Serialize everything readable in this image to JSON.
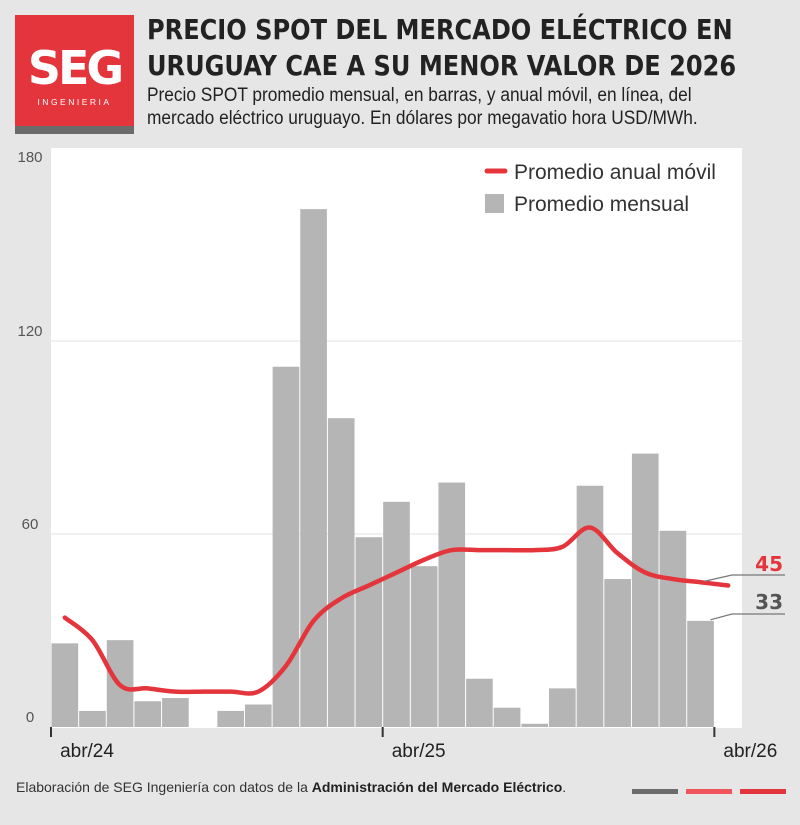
{
  "logo": {
    "main": "SEG",
    "sub": "INGENIERIA"
  },
  "header": {
    "title_line1": "PRECIO SPOT DEL MERCADO ELÉCTRICO EN",
    "title_line2": "URUGUAY CAE A SU MENOR VALOR DE 2026",
    "subtitle_line1": "Precio SPOT promedio mensual, en barras, y anual móvil, en línea, del",
    "subtitle_line2": "mercado eléctrico uruguayo. En dólares por megavatio hora USD/MWh."
  },
  "footer": {
    "prefix": "Elaboración de SEG Ingeniería con datos de la ",
    "source": "Administración del Mercado Eléctrico",
    "suffix": "."
  },
  "colors": {
    "background": "#e6e6e6",
    "bar": "#b5b5b5",
    "line": "#e4343c",
    "brand_red": "#e4343c",
    "brand_gray": "#6b6b6b"
  },
  "chart_data": {
    "type": "bar",
    "categories": [
      "abr/24",
      "may/24",
      "jun/24",
      "jul/24",
      "ago/24",
      "sep/24",
      "oct/24",
      "nov/24",
      "dic/24",
      "ene/25",
      "feb/25",
      "mar/25",
      "abr/25",
      "may/25",
      "jun/25",
      "jul/25",
      "ago/25",
      "sep/25",
      "oct/25",
      "nov/25",
      "dic/25",
      "ene/26",
      "feb/26",
      "mar/26",
      "abr/26"
    ],
    "x_tick_labels": [
      "abr/24",
      "abr/25",
      "abr/26"
    ],
    "x_tick_indices": [
      0,
      12,
      24
    ],
    "series": [
      {
        "name": "Promedio mensual",
        "kind": "bar",
        "values": [
          26,
          5,
          27,
          8,
          9,
          0,
          5,
          7,
          112,
          161,
          96,
          59,
          70,
          50,
          76,
          15,
          6,
          1,
          12,
          75,
          46,
          85,
          61,
          33,
          null
        ]
      },
      {
        "name": "Promedio anual móvil",
        "kind": "line",
        "values": [
          34,
          27,
          13,
          12,
          11,
          11,
          11,
          11,
          19,
          33,
          40,
          44,
          48,
          52,
          55,
          55,
          55,
          55,
          56,
          62,
          54,
          48,
          46,
          45,
          44
        ]
      }
    ],
    "ylim": [
      0,
      180
    ],
    "y_ticks": [
      0,
      60,
      120,
      180
    ],
    "grid": true,
    "legend_position": "top-right",
    "annotations": [
      {
        "label": "45",
        "series": "Promedio anual móvil",
        "color": "#e4343c"
      },
      {
        "label": "33",
        "series": "Promedio mensual",
        "color": "#555555"
      }
    ]
  }
}
